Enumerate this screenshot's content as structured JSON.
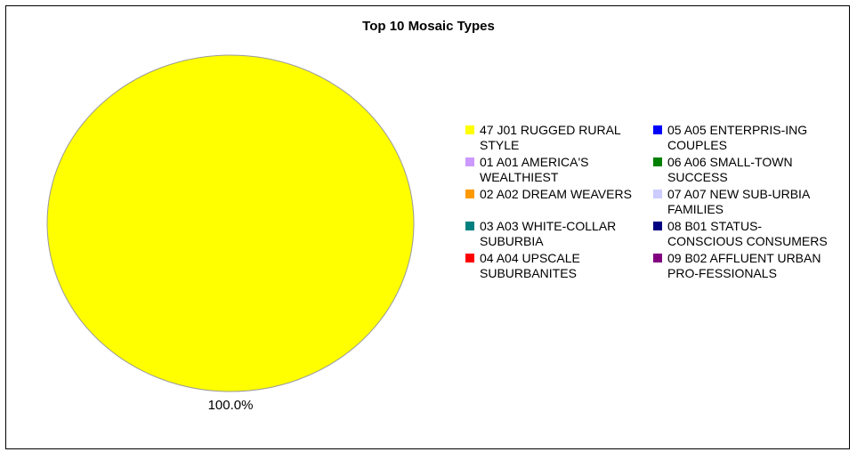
{
  "chart_data": {
    "type": "pie",
    "title": "Top 10 Mosaic Types",
    "slices": [
      {
        "label": "47 J01 RUGGED RURAL STYLE",
        "value": 100.0,
        "display": "100.0%",
        "color": "#ffff00"
      }
    ],
    "legend": {
      "placement": "right",
      "items": [
        {
          "label": "47 J01 RUGGED RURAL STYLE",
          "color": "#ffff00"
        },
        {
          "label": "05 A05 ENTERPRIS-ING COUPLES",
          "color": "#0000ff"
        },
        {
          "label": "01 A01 AMERICA'S WEALTHIEST",
          "color": "#cc99ff"
        },
        {
          "label": "06 A06 SMALL-TOWN SUCCESS",
          "color": "#008000"
        },
        {
          "label": "02 A02 DREAM WEAVERS",
          "color": "#ff9900"
        },
        {
          "label": "07 A07 NEW SUB-URBIA FAMILIES",
          "color": "#ccccff"
        },
        {
          "label": "03 A03 WHITE-COLLAR SUBURBIA",
          "color": "#008080"
        },
        {
          "label": "08 B01 STATUS-CONSCIOUS CONSUMERS",
          "color": "#000080"
        },
        {
          "label": "04 A04 UPSCALE SUBURBANITES",
          "color": "#ff0000"
        },
        {
          "label": "09 B02 AFFLUENT URBAN PRO-FESSIONALS",
          "color": "#800080"
        }
      ]
    }
  }
}
